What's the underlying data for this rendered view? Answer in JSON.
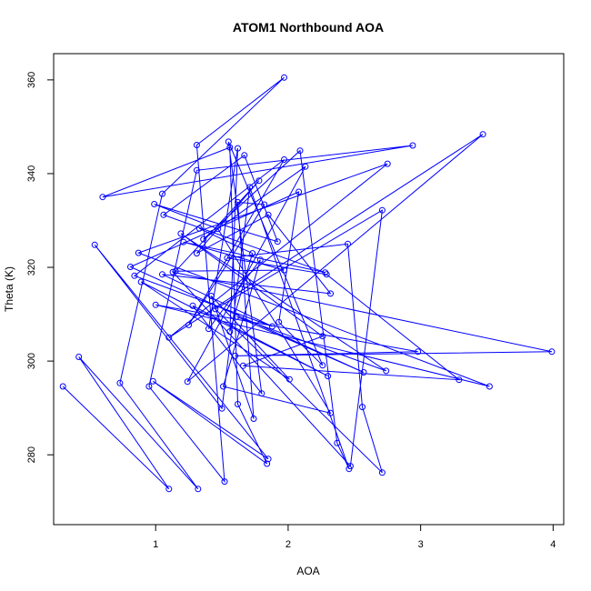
{
  "chart_data": {
    "type": "line",
    "title": "ATOM1 Northbound AOA",
    "xlabel": "AOA",
    "ylabel": "Theta (K)",
    "xlim": [
      0.23,
      4.08
    ],
    "ylim": [
      265.1,
      365.6
    ],
    "xticks": [
      1,
      2,
      3,
      4
    ],
    "yticks": [
      280,
      300,
      320,
      340,
      360
    ],
    "grid": false,
    "markers": "open-circle",
    "series": [
      {
        "color": "#0000ff",
        "points": [
          [
            0.3,
            294.6
          ],
          [
            1.1,
            272.7
          ],
          [
            0.42,
            300.9
          ],
          [
            1.32,
            272.7
          ],
          [
            0.73,
            295.3
          ],
          [
            1.05,
            335.7
          ],
          [
            1.97,
            360.5
          ],
          [
            1.31,
            346.1
          ],
          [
            1.52,
            274.3
          ],
          [
            0.95,
            294.6
          ],
          [
            1.31,
            340.7
          ],
          [
            2.94,
            346.0
          ],
          [
            0.6,
            335.0
          ],
          [
            1.56,
            345.6
          ],
          [
            1.62,
            290.8
          ],
          [
            1.84,
            278.1
          ],
          [
            0.98,
            295.7
          ],
          [
            1.85,
            279.1
          ],
          [
            0.54,
            324.8
          ],
          [
            1.5,
            289.9
          ],
          [
            1.71,
            337.1
          ],
          [
            2.46,
            277.0
          ],
          [
            2.37,
            282.5
          ],
          [
            2.09,
            344.9
          ],
          [
            1.36,
            326.0
          ],
          [
            2.13,
            341.5
          ],
          [
            1.24,
            295.6
          ],
          [
            3.47,
            348.4
          ],
          [
            1.1,
            305.0
          ],
          [
            2.75,
            342.1
          ],
          [
            0.87,
            323.1
          ],
          [
            3.52,
            294.6
          ],
          [
            1.0,
            312.0
          ],
          [
            2.98,
            302.0
          ],
          [
            1.6,
            301.1
          ],
          [
            3.99,
            302.0
          ],
          [
            1.13,
            319.0
          ],
          [
            2.47,
            277.6
          ],
          [
            2.71,
            332.2
          ],
          [
            1.45,
            311.1
          ],
          [
            2.71,
            276.2
          ],
          [
            2.56,
            290.2
          ],
          [
            2.45,
            325.0
          ],
          [
            1.54,
            322.0
          ],
          [
            2.29,
            318.5
          ],
          [
            3.29,
            296.0
          ],
          [
            1.66,
            299.0
          ],
          [
            2.26,
            305.3
          ],
          [
            1.19,
            327.2
          ],
          [
            2.74,
            297.9
          ],
          [
            1.61,
            309.5
          ],
          [
            2.57,
            297.6
          ],
          [
            0.81,
            320.1
          ],
          [
            2.08,
            336.1
          ],
          [
            1.93,
            308.3
          ],
          [
            2.26,
            299.1
          ],
          [
            1.55,
            346.8
          ],
          [
            1.8,
            293.1
          ],
          [
            1.28,
            311.8
          ],
          [
            2.3,
            296.8
          ],
          [
            0.89,
            316.9
          ],
          [
            2.01,
            296.1
          ],
          [
            1.42,
            313.9
          ],
          [
            1.74,
            287.7
          ],
          [
            1.62,
            333.9
          ],
          [
            1.82,
            333.4
          ],
          [
            1.25,
            307.7
          ],
          [
            1.97,
            343.0
          ],
          [
            0.84,
            318.2
          ],
          [
            1.88,
            307.4
          ],
          [
            1.05,
            318.5
          ],
          [
            2.32,
            314.4
          ],
          [
            1.85,
            331.2
          ],
          [
            1.31,
            323.0
          ],
          [
            1.78,
            338.5
          ],
          [
            1.15,
            319.2
          ],
          [
            1.97,
            319.4
          ],
          [
            1.21,
            325.4
          ],
          [
            2.28,
            318.9
          ],
          [
            1.06,
            331.2
          ],
          [
            1.67,
            343.9
          ],
          [
            1.92,
            325.5
          ],
          [
            0.99,
            333.5
          ],
          [
            1.47,
            328.2
          ],
          [
            2.32,
            288.9
          ],
          [
            1.51,
            294.6
          ],
          [
            1.79,
            321.6
          ],
          [
            1.4,
            306.9
          ],
          [
            1.62,
            345.4
          ],
          [
            1.56,
            306.3
          ],
          [
            1.73,
            323.0
          ],
          [
            1.33,
            328.3
          ]
        ]
      }
    ]
  }
}
